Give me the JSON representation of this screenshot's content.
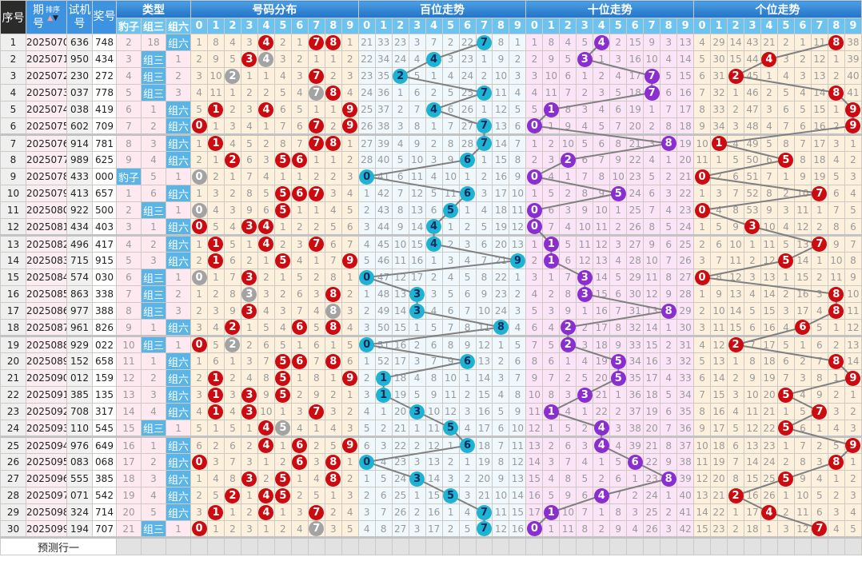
{
  "header": {
    "seq": "序号",
    "issue": "期号",
    "sort": "排序",
    "trial": "试机号",
    "draw": "奖号",
    "type_group": "类型",
    "dist_group": "号码分布",
    "hundreds_group": "百位走势",
    "tens_group": "十位走势",
    "units_group": "个位走势",
    "type_labels": [
      "豹子",
      "组三",
      "组六"
    ],
    "digits": [
      "0",
      "1",
      "2",
      "3",
      "4",
      "5",
      "6",
      "7",
      "8",
      "9"
    ]
  },
  "rows": [
    {
      "seq": "1",
      "issue": "2025070",
      "trial": "636",
      "draw": "748"
    },
    {
      "seq": "2",
      "issue": "2025071",
      "trial": "950",
      "draw": "434"
    },
    {
      "seq": "3",
      "issue": "2025072",
      "trial": "230",
      "draw": "272"
    },
    {
      "seq": "4",
      "issue": "2025073",
      "trial": "037",
      "draw": "778"
    },
    {
      "seq": "5",
      "issue": "2025074",
      "trial": "038",
      "draw": "419"
    },
    {
      "seq": "6",
      "issue": "2025075",
      "trial": "602",
      "draw": "709"
    },
    {
      "seq": "7",
      "issue": "2025076",
      "trial": "914",
      "draw": "781"
    },
    {
      "seq": "8",
      "issue": "2025077",
      "trial": "989",
      "draw": "625"
    },
    {
      "seq": "9",
      "issue": "2025078",
      "trial": "433",
      "draw": "000"
    },
    {
      "seq": "10",
      "issue": "2025079",
      "trial": "413",
      "draw": "657"
    },
    {
      "seq": "11",
      "issue": "2025080",
      "trial": "922",
      "draw": "500"
    },
    {
      "seq": "12",
      "issue": "2025081",
      "trial": "434",
      "draw": "403"
    },
    {
      "seq": "13",
      "issue": "2025082",
      "trial": "496",
      "draw": "417"
    },
    {
      "seq": "14",
      "issue": "2025083",
      "trial": "715",
      "draw": "915"
    },
    {
      "seq": "15",
      "issue": "2025084",
      "trial": "574",
      "draw": "030"
    },
    {
      "seq": "16",
      "issue": "2025085",
      "trial": "863",
      "draw": "338"
    },
    {
      "seq": "17",
      "issue": "2025086",
      "trial": "977",
      "draw": "388"
    },
    {
      "seq": "18",
      "issue": "2025087",
      "trial": "961",
      "draw": "826"
    },
    {
      "seq": "19",
      "issue": "2025088",
      "trial": "929",
      "draw": "022"
    },
    {
      "seq": "20",
      "issue": "2025089",
      "trial": "152",
      "draw": "658"
    },
    {
      "seq": "21",
      "issue": "2025090",
      "trial": "012",
      "draw": "159"
    },
    {
      "seq": "22",
      "issue": "2025091",
      "trial": "385",
      "draw": "135"
    },
    {
      "seq": "23",
      "issue": "2025092",
      "trial": "708",
      "draw": "317"
    },
    {
      "seq": "24",
      "issue": "2025093",
      "trial": "110",
      "draw": "545"
    },
    {
      "seq": "25",
      "issue": "2025094",
      "trial": "976",
      "draw": "649"
    },
    {
      "seq": "26",
      "issue": "2025095",
      "trial": "083",
      "draw": "068"
    },
    {
      "seq": "27",
      "issue": "2025096",
      "trial": "555",
      "draw": "385"
    },
    {
      "seq": "28",
      "issue": "2025097",
      "trial": "071",
      "draw": "542"
    },
    {
      "seq": "29",
      "issue": "2025098",
      "trial": "324",
      "draw": "714"
    },
    {
      "seq": "30",
      "issue": "2025099",
      "trial": "194",
      "draw": "707"
    }
  ],
  "first_row_omissions": {
    "type": [
      2,
      18,
      null
    ],
    "dist": [
      1,
      8,
      4,
      3,
      null,
      2,
      1,
      null,
      null,
      1
    ],
    "hundreds": [
      21,
      33,
      23,
      3,
      7,
      2,
      22,
      null,
      8,
      1
    ],
    "tens": [
      1,
      8,
      4,
      5,
      null,
      2,
      15,
      9,
      3,
      13
    ],
    "units": [
      4,
      29,
      14,
      43,
      21,
      2,
      1,
      11,
      null,
      38
    ]
  },
  "predict_label": "预测行一",
  "colors": {
    "dist_ball": "#cc0a10",
    "repeat_ball": "#a3a3a3",
    "hundreds_ball": "#1fb3d3",
    "tens_ball": "#8a2ed0",
    "units_ball": "#cc0a10",
    "type_hit": "#5ab5e6",
    "trend_line": "#808080"
  }
}
